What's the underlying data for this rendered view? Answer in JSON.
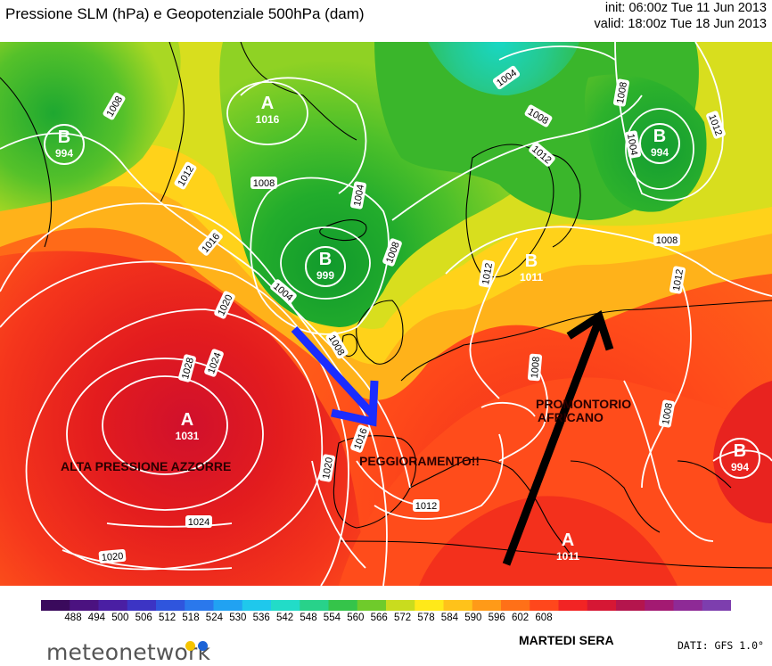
{
  "header": {
    "title": "Pressione SLM (hPa) e Geopotenziale 500hPa (dam)",
    "init": "init: 06:00z Tue 11 Jun 2013",
    "valid": "valid: 18:00z Tue 18 Jun 2013"
  },
  "map": {
    "pressure_centers": [
      {
        "label": "A",
        "value": "1016",
        "type": "high",
        "color": "#ffffff"
      },
      {
        "label": "B",
        "value": "994",
        "type": "low",
        "color": "#ffffff"
      },
      {
        "label": "B",
        "value": "999",
        "type": "low",
        "color": "#ffffff"
      },
      {
        "label": "B",
        "value": "994",
        "type": "low",
        "color": "#ffffff"
      },
      {
        "label": "A",
        "value": "1031",
        "type": "high",
        "color": "#ffffff"
      },
      {
        "label": "A",
        "value": "1011",
        "type": "high",
        "color": "#ffffff"
      },
      {
        "label": "B",
        "value": "1011",
        "type": "low",
        "color": "#ffffff"
      },
      {
        "label": "B",
        "value": "994",
        "type": "low",
        "color": "#ffffff"
      }
    ],
    "isobar_labels": [
      "1008",
      "1012",
      "1016",
      "1020",
      "1024",
      "1028",
      "1008",
      "1004",
      "1004",
      "1008",
      "1004",
      "1008",
      "1012",
      "1008",
      "1012",
      "1008",
      "1004",
      "1008",
      "1012",
      "1008",
      "1016",
      "1020",
      "1012",
      "1024",
      "1020",
      "1008",
      "1012"
    ],
    "annotations": {
      "azores": "ALTA PRESSIONE AZZORRE",
      "worsening": "PEGGIORAMENTO!!",
      "ridge_line1": "PROMONTORIO",
      "ridge_line2": "AFRICANO"
    },
    "arrows": [
      {
        "name": "trough-arrow",
        "color": "#1a2cff"
      },
      {
        "name": "ridge-arrow",
        "color": "#000000"
      }
    ]
  },
  "legend": {
    "ticks": [
      "488",
      "494",
      "500",
      "506",
      "512",
      "518",
      "524",
      "530",
      "536",
      "542",
      "548",
      "554",
      "560",
      "566",
      "572",
      "578",
      "584",
      "590",
      "596",
      "602",
      "608"
    ],
    "colors": [
      "#3a0a5c",
      "#4b1280",
      "#4a1fa3",
      "#3c34c4",
      "#2f55dd",
      "#2a78ec",
      "#21a2f2",
      "#1fc8ec",
      "#22dcc8",
      "#28d28a",
      "#35c44a",
      "#6fcb2b",
      "#c9dc1e",
      "#ffe919",
      "#ffc21a",
      "#ff9a18",
      "#ff7018",
      "#ff471c",
      "#f22424",
      "#d61734",
      "#b4154d",
      "#a31a72",
      "#8e2a96",
      "#7d3eae"
    ],
    "caption": "MARTEDI SERA",
    "source": "DATI: GFS 1.0°",
    "brand": "meteonetwork",
    "brand_dot_colors": [
      "#f5c400",
      "#1c63d6"
    ]
  }
}
